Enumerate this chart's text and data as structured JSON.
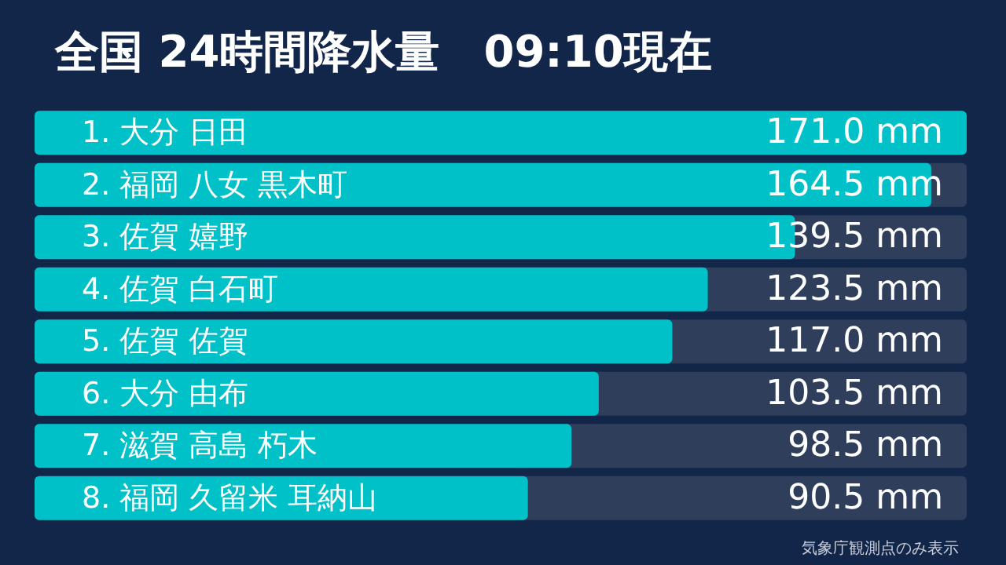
{
  "chart_data": {
    "type": "bar",
    "orientation": "horizontal",
    "title": "全国 24時間降水量　09:10現在",
    "categories": [
      "1. 大分 日田",
      "2. 福岡 八女 黒木町",
      "3. 佐賀 嬉野",
      "4. 佐賀 白石町",
      "5. 佐賀 佐賀",
      "6. 大分 由布",
      "7. 滋賀 高島 朽木",
      "8. 福岡 久留米 耳納山"
    ],
    "values": [
      171.0,
      164.5,
      139.5,
      123.5,
      117.0,
      103.5,
      98.5,
      90.5
    ],
    "value_labels": [
      "171.0 mm",
      "164.5 mm",
      "139.5 mm",
      "123.5 mm",
      "117.0 mm",
      "103.5 mm",
      "98.5 mm",
      "90.5 mm"
    ],
    "color": "#00c0c8",
    "annotations": [
      "気象庁観測点のみ表示"
    ]
  }
}
